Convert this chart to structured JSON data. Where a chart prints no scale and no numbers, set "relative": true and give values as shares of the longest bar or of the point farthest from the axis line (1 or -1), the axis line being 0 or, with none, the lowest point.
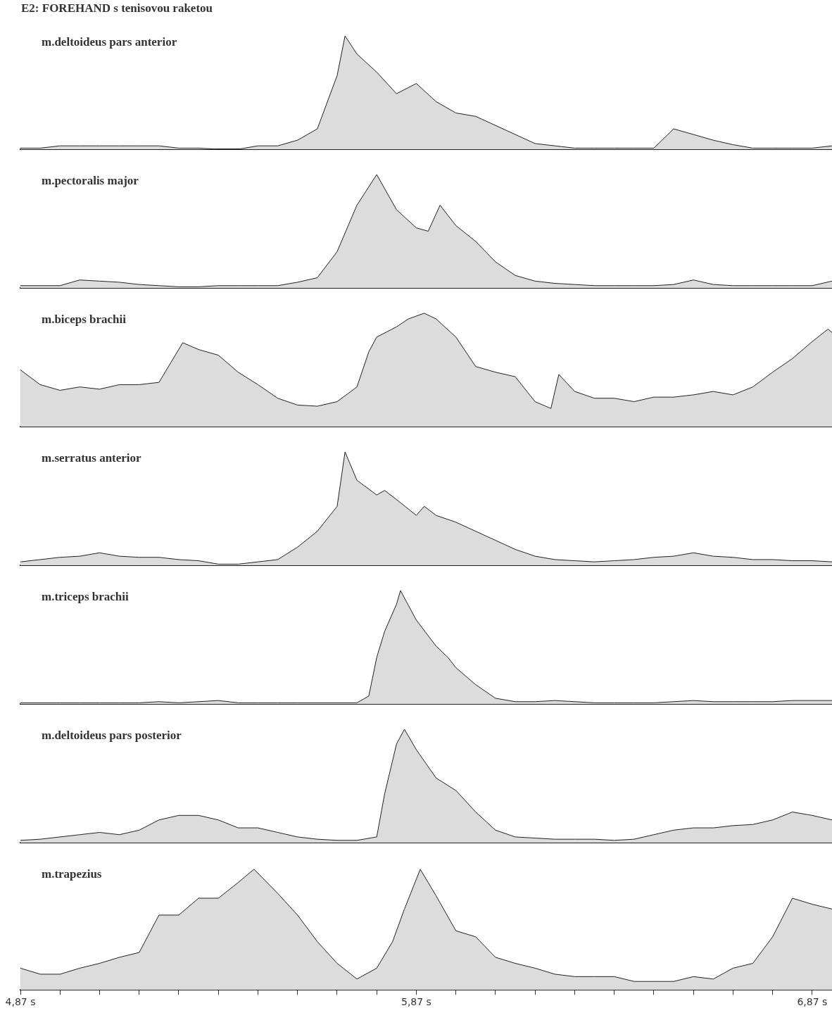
{
  "chart_data": [
    {
      "type": "area",
      "title": "E2: FOREHAND s tenisovou raketou",
      "relative": true,
      "xlim": [
        4.87,
        6.92
      ],
      "tick_labels": false,
      "x": [
        4.87,
        4.92,
        4.97,
        5.02,
        5.07,
        5.12,
        5.17,
        5.22,
        5.27,
        5.32,
        5.37,
        5.42,
        5.47,
        5.52,
        5.57,
        5.62,
        5.67,
        5.69,
        5.72,
        5.77,
        5.82,
        5.87,
        5.92,
        5.97,
        6.02,
        6.07,
        6.12,
        6.17,
        6.22,
        6.27,
        6.32,
        6.37,
        6.42,
        6.47,
        6.52,
        6.57,
        6.62,
        6.67,
        6.72,
        6.77,
        6.82,
        6.87,
        6.92
      ],
      "series": [
        {
          "name": "m.deltoideus pars anterior",
          "color": "#dcdcdc",
          "values": [
            0.01,
            0.01,
            0.03,
            0.03,
            0.03,
            0.03,
            0.03,
            0.03,
            0.01,
            0.01,
            0,
            0,
            0.03,
            0.03,
            0.08,
            0.18,
            0.65,
            1,
            0.84,
            0.68,
            0.49,
            0.58,
            0.42,
            0.32,
            0.29,
            0.21,
            0.13,
            0.05,
            0.03,
            0.01,
            0.01,
            0.01,
            0.01,
            0.01,
            0.18,
            0.13,
            0.08,
            0.04,
            0.01,
            0.01,
            0.01,
            0.01,
            0.03
          ]
        }
      ]
    },
    {
      "type": "area",
      "relative": true,
      "xlim": [
        4.87,
        6.92
      ],
      "tick_labels": false,
      "x": [
        4.87,
        4.92,
        4.97,
        5.02,
        5.07,
        5.12,
        5.17,
        5.22,
        5.27,
        5.32,
        5.37,
        5.42,
        5.47,
        5.52,
        5.57,
        5.62,
        5.67,
        5.72,
        5.77,
        5.82,
        5.87,
        5.9,
        5.93,
        5.97,
        6.02,
        6.07,
        6.12,
        6.17,
        6.22,
        6.27,
        6.32,
        6.37,
        6.42,
        6.47,
        6.52,
        6.57,
        6.62,
        6.67,
        6.72,
        6.77,
        6.82,
        6.87,
        6.92
      ],
      "series": [
        {
          "name": "m.pectoralis major",
          "color": "#dcdcdc",
          "values": [
            0.02,
            0.02,
            0.02,
            0.07,
            0.06,
            0.05,
            0.03,
            0.02,
            0.01,
            0.01,
            0.02,
            0.02,
            0.02,
            0.02,
            0.05,
            0.09,
            0.32,
            0.73,
            1,
            0.69,
            0.53,
            0.5,
            0.73,
            0.55,
            0.41,
            0.23,
            0.11,
            0.06,
            0.04,
            0.03,
            0.02,
            0.02,
            0.02,
            0.02,
            0.03,
            0.07,
            0.03,
            0.02,
            0.02,
            0.02,
            0.02,
            0.02,
            0.06
          ]
        }
      ]
    },
    {
      "type": "area",
      "relative": true,
      "xlim": [
        4.87,
        6.92
      ],
      "tick_labels": false,
      "x": [
        4.87,
        4.92,
        4.97,
        5.02,
        5.07,
        5.12,
        5.17,
        5.22,
        5.28,
        5.32,
        5.37,
        5.42,
        5.47,
        5.52,
        5.57,
        5.62,
        5.67,
        5.72,
        5.75,
        5.77,
        5.82,
        5.85,
        5.89,
        5.92,
        5.97,
        6.02,
        6.07,
        6.12,
        6.17,
        6.21,
        6.23,
        6.27,
        6.32,
        6.37,
        6.42,
        6.47,
        6.52,
        6.57,
        6.62,
        6.67,
        6.72,
        6.77,
        6.82,
        6.87,
        6.91,
        6.92
      ],
      "series": [
        {
          "name": "m.biceps brachii",
          "color": "#dcdcdc",
          "values": [
            0.5,
            0.37,
            0.32,
            0.35,
            0.33,
            0.37,
            0.37,
            0.39,
            0.74,
            0.68,
            0.63,
            0.48,
            0.37,
            0.25,
            0.19,
            0.18,
            0.22,
            0.35,
            0.66,
            0.79,
            0.88,
            0.95,
            1,
            0.95,
            0.79,
            0.53,
            0.48,
            0.44,
            0.22,
            0.16,
            0.46,
            0.31,
            0.25,
            0.25,
            0.22,
            0.26,
            0.26,
            0.28,
            0.31,
            0.28,
            0.35,
            0.48,
            0.6,
            0.75,
            0.86,
            0.83
          ]
        }
      ]
    },
    {
      "type": "area",
      "relative": true,
      "xlim": [
        4.87,
        6.92
      ],
      "tick_labels": false,
      "x": [
        4.87,
        4.92,
        4.97,
        5.02,
        5.07,
        5.12,
        5.17,
        5.22,
        5.27,
        5.32,
        5.37,
        5.42,
        5.47,
        5.52,
        5.57,
        5.62,
        5.67,
        5.69,
        5.72,
        5.77,
        5.79,
        5.82,
        5.87,
        5.89,
        5.92,
        5.97,
        6.02,
        6.07,
        6.12,
        6.17,
        6.22,
        6.27,
        6.32,
        6.37,
        6.42,
        6.47,
        6.52,
        6.57,
        6.62,
        6.67,
        6.72,
        6.77,
        6.82,
        6.87,
        6.92
      ],
      "series": [
        {
          "name": "m.serratus anterior",
          "color": "#dcdcdc",
          "values": [
            0.03,
            0.05,
            0.07,
            0.08,
            0.11,
            0.08,
            0.07,
            0.07,
            0.05,
            0.04,
            0.01,
            0.01,
            0.03,
            0.05,
            0.16,
            0.3,
            0.52,
            1,
            0.75,
            0.62,
            0.66,
            0.58,
            0.44,
            0.52,
            0.44,
            0.38,
            0.3,
            0.22,
            0.14,
            0.08,
            0.05,
            0.04,
            0.03,
            0.04,
            0.05,
            0.07,
            0.08,
            0.11,
            0.08,
            0.07,
            0.05,
            0.05,
            0.04,
            0.04,
            0.03
          ]
        }
      ]
    },
    {
      "type": "area",
      "relative": true,
      "xlim": [
        4.87,
        6.92
      ],
      "tick_labels": false,
      "x": [
        4.87,
        4.92,
        4.97,
        5.02,
        5.07,
        5.12,
        5.17,
        5.22,
        5.27,
        5.32,
        5.37,
        5.42,
        5.47,
        5.52,
        5.57,
        5.62,
        5.67,
        5.72,
        5.75,
        5.77,
        5.79,
        5.82,
        5.83,
        5.87,
        5.92,
        5.95,
        5.97,
        6.02,
        6.07,
        6.12,
        6.17,
        6.22,
        6.27,
        6.32,
        6.37,
        6.42,
        6.47,
        6.52,
        6.57,
        6.62,
        6.67,
        6.72,
        6.77,
        6.82,
        6.87,
        6.92
      ],
      "series": [
        {
          "name": "m.triceps brachii",
          "color": "#dcdcdc",
          "values": [
            0.01,
            0.01,
            0.01,
            0.01,
            0.01,
            0.01,
            0.01,
            0.02,
            0.01,
            0.02,
            0.03,
            0.01,
            0.01,
            0.01,
            0.01,
            0.01,
            0.01,
            0.01,
            0.07,
            0.41,
            0.64,
            0.88,
            1,
            0.74,
            0.51,
            0.41,
            0.32,
            0.17,
            0.05,
            0.02,
            0.02,
            0.03,
            0.02,
            0.01,
            0.01,
            0.01,
            0.01,
            0.02,
            0.03,
            0.02,
            0.02,
            0.02,
            0.02,
            0.03,
            0.03,
            0.03
          ]
        }
      ]
    },
    {
      "type": "area",
      "relative": true,
      "xlim": [
        4.87,
        6.92
      ],
      "tick_labels": false,
      "x": [
        4.87,
        4.92,
        4.97,
        5.02,
        5.07,
        5.12,
        5.17,
        5.22,
        5.27,
        5.32,
        5.37,
        5.42,
        5.47,
        5.52,
        5.57,
        5.62,
        5.67,
        5.72,
        5.77,
        5.79,
        5.82,
        5.84,
        5.87,
        5.92,
        5.97,
        6.02,
        6.07,
        6.12,
        6.17,
        6.22,
        6.27,
        6.32,
        6.37,
        6.42,
        6.47,
        6.52,
        6.57,
        6.62,
        6.67,
        6.72,
        6.77,
        6.82,
        6.87,
        6.92
      ],
      "series": [
        {
          "name": "m.deltoideus pars posterior",
          "color": "#dcdcdc",
          "values": [
            0.02,
            0.03,
            0.05,
            0.07,
            0.09,
            0.07,
            0.11,
            0.2,
            0.24,
            0.24,
            0.2,
            0.13,
            0.13,
            0.09,
            0.05,
            0.03,
            0.02,
            0.02,
            0.05,
            0.43,
            0.87,
            1,
            0.82,
            0.57,
            0.46,
            0.27,
            0.11,
            0.05,
            0.04,
            0.03,
            0.03,
            0.03,
            0.02,
            0.03,
            0.07,
            0.11,
            0.13,
            0.13,
            0.15,
            0.16,
            0.2,
            0.27,
            0.24,
            0.2
          ]
        }
      ]
    },
    {
      "type": "area",
      "relative": true,
      "xlim": [
        4.87,
        6.92
      ],
      "tick_labels": "x",
      "xticks": [
        {
          "value": 4.87,
          "label": "4,87 s"
        },
        {
          "value": 4.97,
          "label": null
        },
        {
          "value": 5.07,
          "label": null
        },
        {
          "value": 5.17,
          "label": null
        },
        {
          "value": 5.27,
          "label": null
        },
        {
          "value": 5.37,
          "label": null
        },
        {
          "value": 5.47,
          "label": null
        },
        {
          "value": 5.57,
          "label": null
        },
        {
          "value": 5.67,
          "label": null
        },
        {
          "value": 5.77,
          "label": null
        },
        {
          "value": 5.87,
          "label": "5,87 s"
        },
        {
          "value": 5.97,
          "label": null
        },
        {
          "value": 6.07,
          "label": null
        },
        {
          "value": 6.17,
          "label": null
        },
        {
          "value": 6.27,
          "label": null
        },
        {
          "value": 6.37,
          "label": null
        },
        {
          "value": 6.47,
          "label": null
        },
        {
          "value": 6.57,
          "label": null
        },
        {
          "value": 6.67,
          "label": null
        },
        {
          "value": 6.77,
          "label": null
        },
        {
          "value": 6.87,
          "label": "6,87 s"
        }
      ],
      "x": [
        4.87,
        4.92,
        4.97,
        5.02,
        5.07,
        5.12,
        5.17,
        5.22,
        5.27,
        5.32,
        5.37,
        5.42,
        5.46,
        5.52,
        5.57,
        5.62,
        5.67,
        5.72,
        5.77,
        5.81,
        5.84,
        5.88,
        5.92,
        5.97,
        6.02,
        6.07,
        6.12,
        6.17,
        6.22,
        6.27,
        6.32,
        6.37,
        6.42,
        6.47,
        6.52,
        6.57,
        6.62,
        6.67,
        6.72,
        6.77,
        6.82,
        6.87,
        6.92
      ],
      "series": [
        {
          "name": "m.trapezius",
          "color": "#dcdcdc",
          "values": [
            0.18,
            0.13,
            0.13,
            0.18,
            0.22,
            0.27,
            0.31,
            0.62,
            0.62,
            0.76,
            0.76,
            0.89,
            1,
            0.8,
            0.62,
            0.4,
            0.22,
            0.09,
            0.18,
            0.4,
            0.67,
            1,
            0.78,
            0.49,
            0.44,
            0.27,
            0.22,
            0.18,
            0.13,
            0.11,
            0.11,
            0.11,
            0.07,
            0.07,
            0.07,
            0.11,
            0.09,
            0.18,
            0.22,
            0.44,
            0.76,
            0.71,
            0.67
          ]
        }
      ]
    }
  ]
}
